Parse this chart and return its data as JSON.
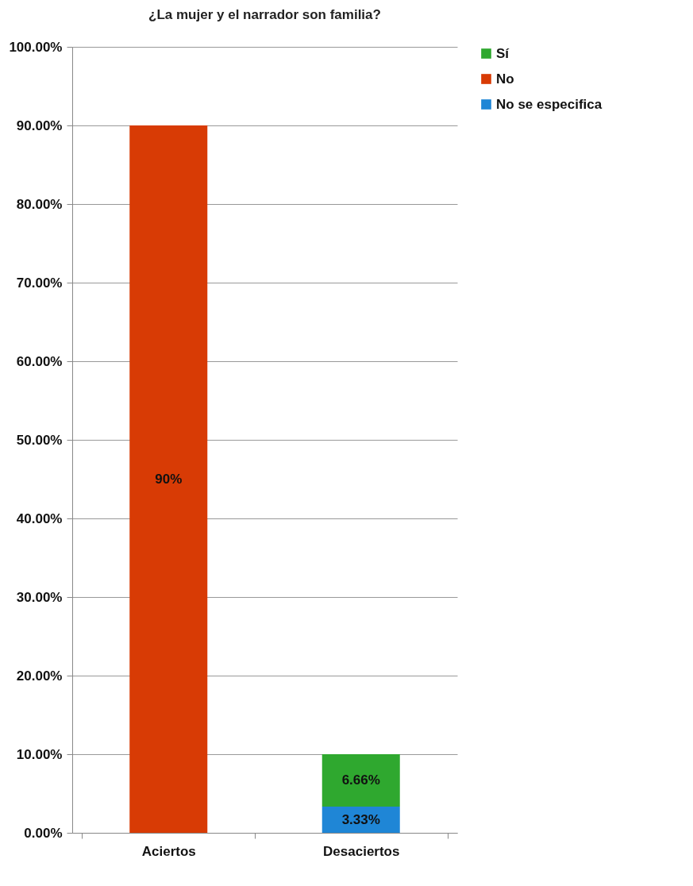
{
  "chart_data": {
    "type": "bar",
    "title": "¿La mujer y el narrador son familia?",
    "stacked": true,
    "categories": [
      "Aciertos",
      "Desaciertos"
    ],
    "series": [
      {
        "name": "No se especifica",
        "color": "#1f86d6",
        "values": [
          null,
          3.33
        ],
        "value_labels": [
          null,
          "3.33%"
        ]
      },
      {
        "name": "No",
        "color": "#d83b05",
        "values": [
          90,
          null
        ],
        "value_labels": [
          "90%",
          null
        ]
      },
      {
        "name": "Sí",
        "color": "#2fa82f",
        "values": [
          null,
          6.66
        ],
        "value_labels": [
          null,
          "6.66%"
        ]
      }
    ],
    "ylim": [
      0,
      100
    ],
    "yticks": [
      {
        "value": 0,
        "label": "0.00%"
      },
      {
        "value": 10,
        "label": "10.00%"
      },
      {
        "value": 20,
        "label": "20.00%"
      },
      {
        "value": 30,
        "label": "30.00%"
      },
      {
        "value": 40,
        "label": "40.00%"
      },
      {
        "value": 50,
        "label": "50.00%"
      },
      {
        "value": 60,
        "label": "60.00%"
      },
      {
        "value": 70,
        "label": "70.00%"
      },
      {
        "value": 80,
        "label": "80.00%"
      },
      {
        "value": 90,
        "label": "90.00%"
      },
      {
        "value": 100,
        "label": "100.00%"
      }
    ],
    "grid": "y",
    "legend": "right"
  }
}
